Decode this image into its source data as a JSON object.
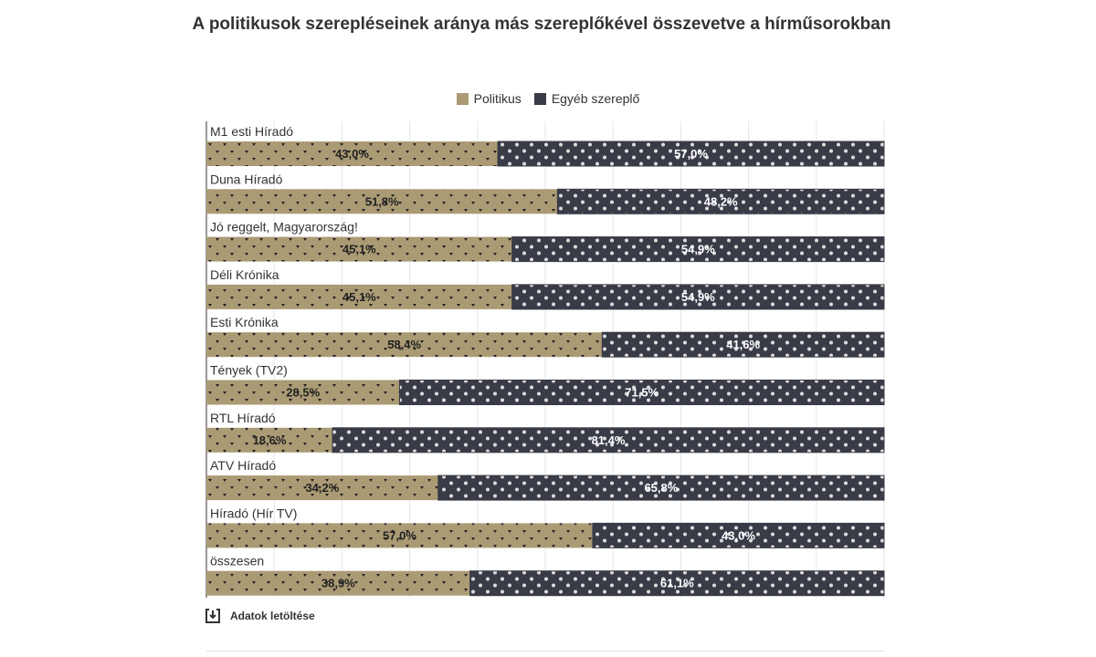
{
  "chart_data": {
    "type": "bar",
    "stacked": "percent",
    "orientation": "horizontal",
    "title": "A politikusok szerepléseinek aránya más szereplőkével összevetve a hírműsorokban",
    "categories": [
      "M1 esti Híradó",
      "Duna Híradó",
      "Jó reggelt, Magyarország!",
      "Déli Krónika",
      "Esti Krónika",
      "Tények (TV2)",
      "RTL Híradó",
      "ATV Híradó",
      "Híradó (Hír TV)",
      "összesen"
    ],
    "series": [
      {
        "name": "Politikus",
        "color": "#ab9b75",
        "values": [
          43.0,
          51.8,
          45.1,
          45.1,
          58.4,
          28.5,
          18.6,
          34.2,
          57.0,
          38.9
        ],
        "labels": [
          "43,0%",
          "51,8%",
          "45,1%",
          "45,1%",
          "58,4%",
          "28,5%",
          "18,6%",
          "34,2%",
          "57,0%",
          "38,9%"
        ]
      },
      {
        "name": "Egyéb szereplő",
        "color": "#393b47",
        "values": [
          57.0,
          48.2,
          54.9,
          54.9,
          41.6,
          71.5,
          81.4,
          65.8,
          43.0,
          61.1
        ],
        "labels": [
          "57,0%",
          "48,2%",
          "54,9%",
          "54,9%",
          "41,6%",
          "71,5%",
          "81,4%",
          "65,8%",
          "43,0%",
          "61,1%"
        ]
      }
    ],
    "xlim": [
      0,
      100
    ],
    "grid": true,
    "legend_position": "top-center"
  },
  "download_label": "Adatok letöltése"
}
